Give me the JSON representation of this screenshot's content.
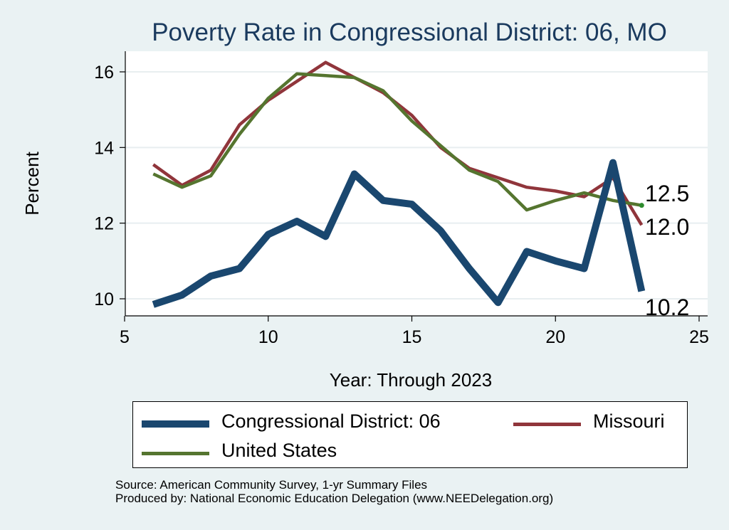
{
  "chart_data": {
    "type": "line",
    "title": "Poverty Rate in Congressional District:  06, MO",
    "xlabel": "Year: Through 2023",
    "ylabel": "Percent",
    "xlim": [
      5,
      25
    ],
    "ylim": [
      9.6,
      16.6
    ],
    "x_ticks": [
      5,
      10,
      15,
      20,
      25
    ],
    "y_ticks": [
      10,
      12,
      14,
      16
    ],
    "grid": true,
    "legend_position": "bottom",
    "x": [
      6,
      7,
      8,
      9,
      10,
      11,
      12,
      13,
      14,
      15,
      16,
      17,
      18,
      19,
      20,
      21,
      22,
      23
    ],
    "series": [
      {
        "name": "Congressional District:  06",
        "color": "#1a476f",
        "values": [
          9.85,
          10.1,
          10.6,
          10.8,
          11.7,
          12.05,
          11.65,
          13.3,
          12.6,
          12.5,
          11.8,
          10.8,
          9.9,
          11.25,
          11.0,
          10.8,
          13.6,
          10.2
        ],
        "end_label": "10.2"
      },
      {
        "name": "Missouri",
        "color": "#90353b",
        "values": [
          13.55,
          13.0,
          13.4,
          14.6,
          15.25,
          15.75,
          16.25,
          15.85,
          15.45,
          14.85,
          14.0,
          13.45,
          13.2,
          12.95,
          12.85,
          12.7,
          13.2,
          11.95
        ],
        "end_label": "12.0"
      },
      {
        "name": "United States",
        "color": "#55752f",
        "values": [
          13.3,
          12.95,
          13.25,
          14.35,
          15.3,
          15.95,
          15.9,
          15.85,
          15.5,
          14.7,
          14.05,
          13.4,
          13.1,
          12.35,
          12.6,
          12.8,
          12.6,
          12.47
        ],
        "end_label": "12.5"
      }
    ],
    "source": "Source: American Community Survey, 1-yr Summary Files",
    "producer": "Produced by: National Economic Education Delegation (www.NEEDelegation.org)"
  }
}
